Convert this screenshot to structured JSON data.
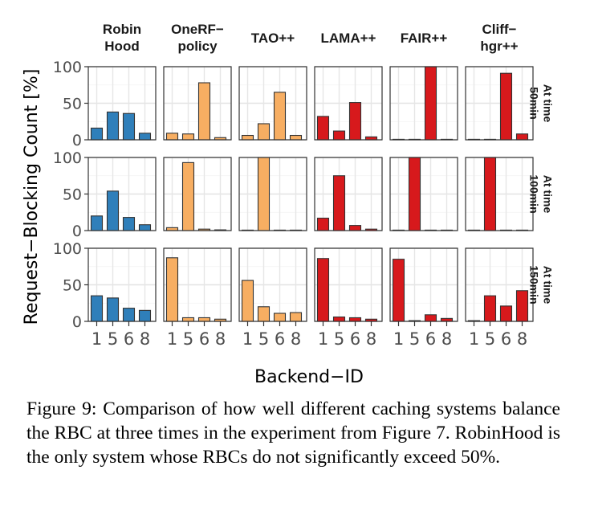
{
  "chart_data": {
    "type": "bar",
    "xlabel": "Backend−ID",
    "ylabel": "Request−Blocking Count [%]",
    "ylim": [
      0,
      100
    ],
    "yticks": [
      "0",
      "50",
      "100"
    ],
    "x_categories": [
      "1",
      "5",
      "6",
      "8"
    ],
    "x_tick_labels": [
      "1",
      "5",
      "6",
      "8"
    ],
    "facet_columns": [
      {
        "label": "Robin\nHood",
        "color": "#2f7fba"
      },
      {
        "label": "OneRF−\npolicy",
        "color": "#f7ae62"
      },
      {
        "label": "TAO++",
        "color": "#f7ae62"
      },
      {
        "label": "LAMA++",
        "color": "#d7191c"
      },
      {
        "label": "FAIR++",
        "color": "#d7191c"
      },
      {
        "label": "Cliff−\nhgr++",
        "color": "#d7191c"
      }
    ],
    "facet_rows": [
      {
        "label": "At time\n50min"
      },
      {
        "label": "At time\n100min"
      },
      {
        "label": "At time\n150min"
      }
    ],
    "grid": true,
    "values": [
      [
        [
          16,
          38,
          36,
          9
        ],
        [
          9,
          8,
          78,
          3
        ],
        [
          6,
          22,
          65,
          6
        ],
        [
          32,
          12,
          51,
          4
        ],
        [
          0,
          0,
          100,
          0
        ],
        [
          0,
          0,
          91,
          8
        ]
      ],
      [
        [
          20,
          54,
          18,
          8
        ],
        [
          4,
          93,
          2,
          1
        ],
        [
          0,
          100,
          0,
          0
        ],
        [
          17,
          75,
          7,
          2
        ],
        [
          0,
          100,
          0,
          0
        ],
        [
          0,
          100,
          0,
          0
        ]
      ],
      [
        [
          35,
          32,
          18,
          15
        ],
        [
          87,
          5,
          5,
          3
        ],
        [
          56,
          20,
          11,
          12
        ],
        [
          86,
          6,
          5,
          3
        ],
        [
          85,
          1,
          9,
          4
        ],
        [
          1,
          35,
          21,
          42
        ]
      ]
    ]
  },
  "caption": "Figure 9: Comparison of how well different caching systems balance the RBC at three times in the experiment from Figure 7.  RobinHood is the only system whose RBCs do not significantly exceed 50%."
}
